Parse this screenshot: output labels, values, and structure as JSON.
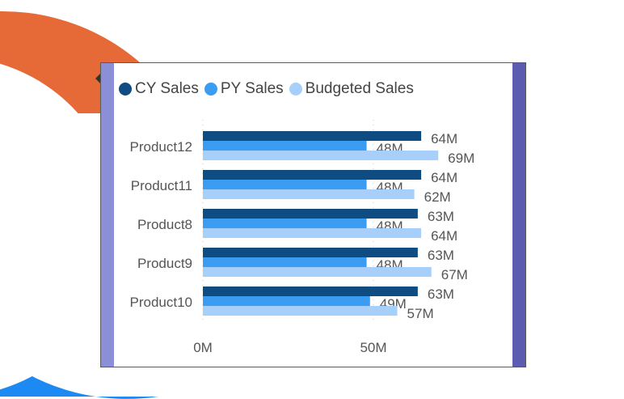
{
  "colors": {
    "cy": "#0f4c81",
    "py": "#3a9cf2",
    "budget": "#a6d0fb",
    "ring_orange": "#e66a37",
    "ring_blue": "#1d89f2",
    "strip_left": "#8a8fd8",
    "strip_right": "#5b5cb0"
  },
  "chart_data": {
    "type": "bar",
    "orientation": "horizontal",
    "categories": [
      "Product12",
      "Product11",
      "Product8",
      "Product9",
      "Product10"
    ],
    "series": [
      {
        "name": "CY Sales",
        "values": [
          64,
          64,
          63,
          63,
          63
        ],
        "labels": [
          "64M",
          "64M",
          "63M",
          "63M",
          "63M"
        ]
      },
      {
        "name": "PY Sales",
        "values": [
          48,
          48,
          48,
          48,
          49
        ],
        "labels": [
          "48M",
          "48M",
          "48M",
          "48M",
          "49M"
        ]
      },
      {
        "name": "Budgeted Sales",
        "values": [
          69,
          62,
          64,
          67,
          57
        ],
        "labels": [
          "69M",
          "62M",
          "64M",
          "67M",
          "57M"
        ]
      }
    ],
    "xlim": [
      0,
      80
    ],
    "xticks": [
      {
        "value": 0,
        "label": "0M"
      },
      {
        "value": 50,
        "label": "50M"
      }
    ],
    "legend_position": "top-left",
    "grid": true,
    "title": "",
    "xlabel": "",
    "ylabel": ""
  }
}
